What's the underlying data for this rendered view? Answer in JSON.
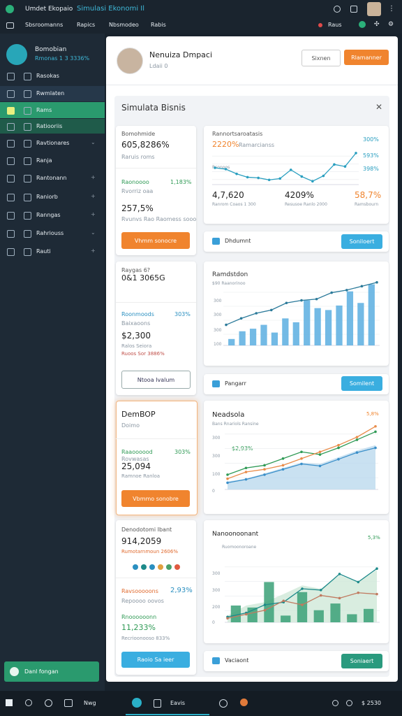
{
  "top": {
    "app_name": "Umdet Ekopaio",
    "app_title": "Simulasi Ekonomi Il",
    "menu": [
      "Sbsroomanns",
      "Rapics",
      "Nbsmodeo",
      "Rabis"
    ],
    "notice": "Raus"
  },
  "sidebar": {
    "user_name": "Bomobian",
    "user_stat": "Rmonas 1 3 3336%",
    "items": [
      "Rasokas",
      "Rwmlaten",
      "Rams",
      "Ratiooriis",
      "Ravtionares",
      "Ranja",
      "Rantonann",
      "Raniorb",
      "Ranngas",
      "Rahriouss",
      "Rauti"
    ],
    "button": "Danl fongan"
  },
  "header": {
    "name": "Nenuiza Dmpaci",
    "sub": "Ldaii 0",
    "button_secondary": "Sixnen",
    "button_primary": "Rlamanner"
  },
  "panel": {
    "title": "Simulata Bisnis"
  },
  "cards": [
    {
      "title": "Bomohmide",
      "value": "605,8286%",
      "sub": "Raruis roms",
      "metric_label": "Raonoooo",
      "metric_value": "1,183%",
      "metric_sub": "Rvorriz oaa",
      "value2": "257,5%",
      "foot": "Rvunvs Rao Raomess sooo",
      "button": "Vhmm sonocre"
    },
    {
      "title": "Raygas 6?",
      "value": "0&1 3065G",
      "sub": "",
      "metric_label": "Roonmoods",
      "metric_value": "303%",
      "metric_sub": "Baixaoons",
      "value2": "$2,300",
      "foot": "Ralos Seiora",
      "foot2": "Ruoos Sor 3886%",
      "button": "Ntooa Ivalum"
    },
    {
      "title": "DemBOP",
      "value": "Doimo",
      "metric_label": "Raaoooood",
      "metric_value": "303%",
      "metric_sub": "Rovwasas",
      "value2": "25,094",
      "foot": "Ramnoe Ranloa",
      "button": "Vbmmo sonobre"
    },
    {
      "title": "Denodotomi Ibant",
      "value": "914,2059",
      "sub": "Rumotarnmoun 2606%",
      "metric_label": "Ravsooooons",
      "metric_value": "2,93%",
      "metric_sub": "Repoooo oovos",
      "metric2_label": "Rnoooooonn",
      "value2": "11,233%",
      "foot": "Recrioonooso 833%",
      "button": "Raoio Sa ieer"
    }
  ],
  "panels": [
    {
      "title": "Rannortsaroatasis",
      "value": "2220%",
      "value_sub": "Ramarcianss",
      "axis_note": "Rsonoos",
      "right_labels": [
        "300%",
        "593%",
        "398%"
      ],
      "stats": [
        {
          "value": "4,7,620",
          "sub": "Ranrom Coaos 1 300"
        },
        {
          "value": "4209%",
          "sub": "Resusoe Ranlo 2000"
        },
        {
          "value": "58,7%",
          "sub": "Ramsbourn"
        }
      ],
      "footer": "Dhdumnt",
      "button": "Soniloert"
    },
    {
      "title": "Ramdstdon",
      "sub": "$90 Raanorinoo",
      "y_labels": [
        "300",
        "300",
        "300",
        "100"
      ],
      "footer": "Pangarr",
      "button": "Somilent"
    },
    {
      "title": "Neadsola",
      "sub": "Bans Rnariols Ransine",
      "corner": "5,8%",
      "note": "$2,93%",
      "y_labels": [
        "300",
        "300",
        "100",
        "0"
      ]
    },
    {
      "title": "Nanoonoonant",
      "sub": "Ruomoonoroane",
      "corner": "5,3%",
      "y_labels": [
        "300",
        "300",
        "200",
        "0"
      ],
      "footer": "Vaciaont",
      "button": "Soniaert"
    }
  ],
  "charts": [
    {
      "ylim": [
        0,
        10
      ],
      "lines": [
        {
          "color": "#2a9fc0",
          "values": [
            5,
            4.6,
            3.2,
            2.2,
            2,
            1.4,
            1.8,
            4.4,
            2.4,
            1,
            2.6,
            6,
            5.4,
            9.4
          ]
        }
      ]
    },
    {
      "ylim": [
        0,
        100
      ],
      "bars": {
        "color": "#5aaee0",
        "values": [
          10,
          22,
          26,
          32,
          20,
          42,
          36,
          70,
          58,
          55,
          62,
          84,
          66,
          95
        ]
      },
      "lines": [
        {
          "color": "#2b7a9a",
          "values": [
            32,
            42,
            50,
            55,
            66,
            70,
            72,
            82,
            86,
            92,
            98
          ]
        }
      ]
    },
    {
      "ylim": [
        0,
        100
      ],
      "areas": [
        {
          "color": "#bcd9ee",
          "values": [
            12,
            16,
            24,
            32,
            40,
            38,
            48,
            58,
            66
          ]
        }
      ],
      "lines": [
        {
          "color": "#2f9a55",
          "values": [
            22,
            32,
            36,
            46,
            56,
            52,
            62,
            74,
            86
          ]
        },
        {
          "color": "#e98c4a",
          "values": [
            16,
            26,
            30,
            36,
            46,
            56,
            66,
            78,
            94
          ]
        },
        {
          "color": "#3a8fc9",
          "values": [
            10,
            15,
            22,
            30,
            38,
            35,
            45,
            55,
            62
          ]
        }
      ]
    },
    {
      "ylim": [
        0,
        100
      ],
      "areas": [
        {
          "color": "#cfe8d8",
          "values": [
            10,
            25,
            30,
            42,
            55,
            50,
            70,
            60,
            78
          ]
        }
      ],
      "bars": {
        "color": "#3aa077",
        "values": [
          25,
          22,
          60,
          10,
          45,
          18,
          28,
          12,
          20
        ]
      },
      "lines": [
        {
          "color": "#1d8a8a",
          "values": [
            8,
            14,
            26,
            30,
            50,
            48,
            72,
            60,
            80
          ]
        },
        {
          "color": "#c07a60",
          "values": [
            6,
            12,
            18,
            32,
            26,
            40,
            36,
            44,
            42
          ]
        }
      ]
    }
  ],
  "taskbar": [
    "Nwg",
    "Eavis",
    "$ 2530"
  ]
}
